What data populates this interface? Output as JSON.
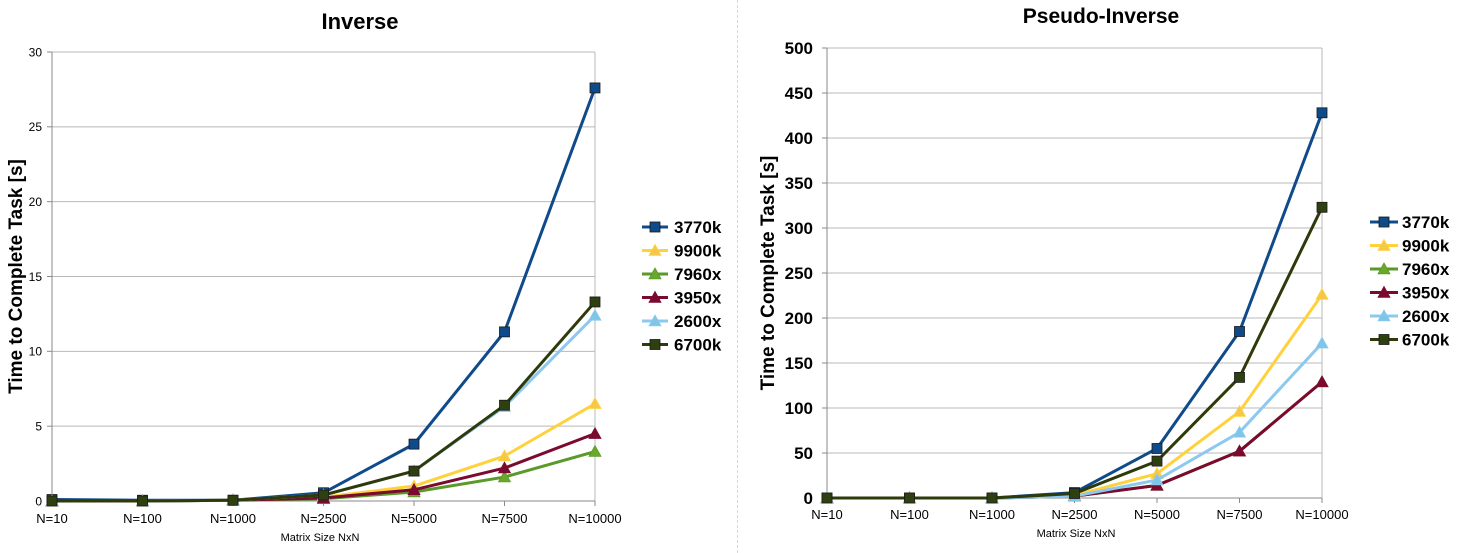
{
  "series_styles": [
    {
      "name": "3770k",
      "color": "#0f4a8a",
      "fill": "#0f4a8a",
      "marker": "square"
    },
    {
      "name": "9900k",
      "color": "#ffd23c",
      "fill": "#f5c84a",
      "marker": "triangle"
    },
    {
      "name": "7960x",
      "color": "#5a9a28",
      "fill": "#6aa82c",
      "marker": "triangle"
    },
    {
      "name": "3950x",
      "color": "#7a0a2e",
      "fill": "#7a0a2e",
      "marker": "triangle"
    },
    {
      "name": "2600x",
      "color": "#8cc8f0",
      "fill": "#7ec6e6",
      "marker": "triangle"
    },
    {
      "name": "6700k",
      "color": "#2f3a0a",
      "fill": "#2f4010",
      "marker": "square"
    }
  ],
  "chart_data": [
    {
      "type": "line",
      "title": "Inverse",
      "xlabel": "Matrix Size NxN",
      "ylabel": "Time to Complete Task [s]",
      "categories": [
        "N=10",
        "N=100",
        "N=1000",
        "N=2500",
        "N=5000",
        "N=7500",
        "N=10000"
      ],
      "ylim": [
        0,
        30
      ],
      "yticks": [
        0,
        5,
        10,
        15,
        20,
        25,
        30
      ],
      "grid": true,
      "legend": "right",
      "series": [
        {
          "name": "3770k",
          "values": [
            0.1,
            0.05,
            0.05,
            0.55,
            3.8,
            11.3,
            27.6
          ]
        },
        {
          "name": "9900k",
          "values": [
            0.0,
            0.0,
            0.05,
            0.25,
            1.0,
            3.0,
            6.5
          ]
        },
        {
          "name": "7960x",
          "values": [
            0.0,
            0.0,
            0.05,
            0.15,
            0.6,
            1.6,
            3.3
          ]
        },
        {
          "name": "3950x",
          "values": [
            0.0,
            0.0,
            0.05,
            0.2,
            0.75,
            2.2,
            4.5
          ]
        },
        {
          "name": "2600x",
          "values": [
            0.0,
            0.0,
            0.05,
            0.4,
            2.0,
            6.3,
            12.4
          ]
        },
        {
          "name": "6700k",
          "values": [
            0.0,
            0.0,
            0.05,
            0.4,
            2.0,
            6.4,
            13.3
          ]
        }
      ]
    },
    {
      "type": "line",
      "title": "Pseudo-Inverse",
      "xlabel": "Matrix Size NxN",
      "ylabel": "Time to Complete Task [s]",
      "categories": [
        "N=10",
        "N=100",
        "N=1000",
        "N=2500",
        "N=5000",
        "N=7500",
        "N=10000"
      ],
      "ylim": [
        0,
        500
      ],
      "yticks": [
        0,
        50,
        100,
        150,
        200,
        250,
        300,
        350,
        400,
        450,
        500
      ],
      "grid": true,
      "legend": "right",
      "series": [
        {
          "name": "3770k",
          "values": [
            0,
            0,
            0,
            6,
            55,
            185,
            428
          ]
        },
        {
          "name": "9900k",
          "values": [
            0,
            0,
            0,
            3,
            27,
            96,
            226
          ]
        },
        {
          "name": "7960x",
          "values": [
            0,
            0,
            0,
            2,
            14,
            52,
            129
          ]
        },
        {
          "name": "3950x",
          "values": [
            0,
            0,
            0,
            2,
            14,
            52,
            129
          ]
        },
        {
          "name": "2600x",
          "values": [
            0,
            0,
            0,
            2,
            20,
            73,
            172
          ]
        },
        {
          "name": "6700k",
          "values": [
            0,
            0,
            0,
            5,
            41,
            134,
            323
          ]
        }
      ]
    }
  ]
}
